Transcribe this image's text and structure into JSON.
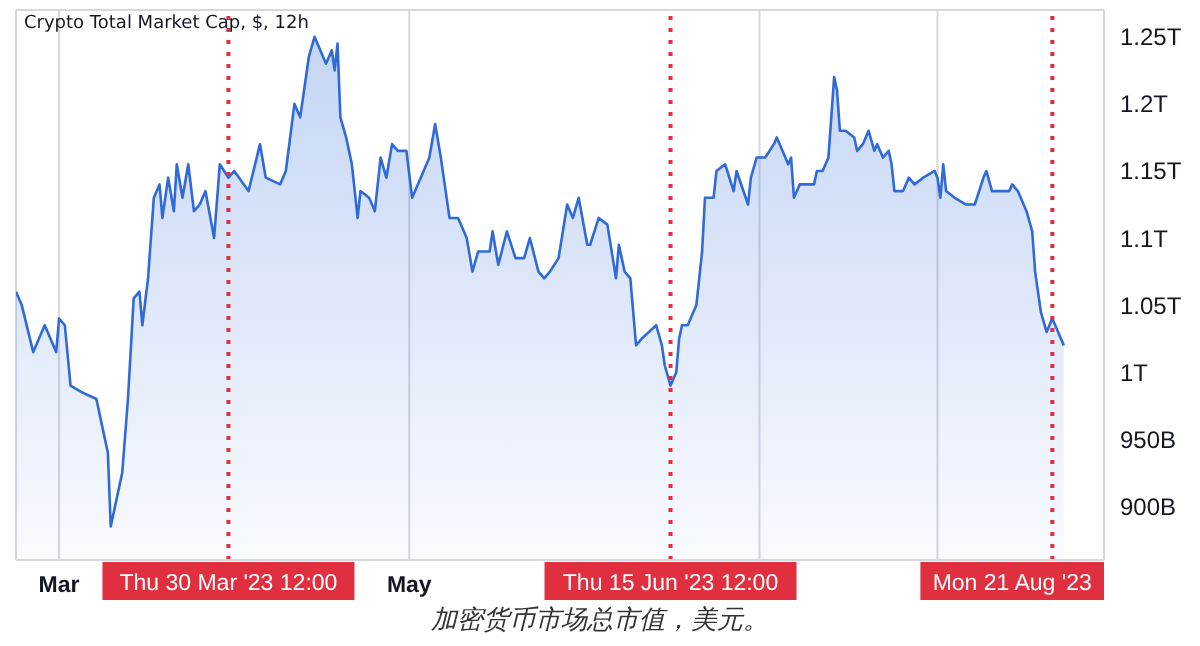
{
  "chart_data": {
    "type": "area",
    "title": "Crypto Total Market Cap, $, 12h",
    "annotations": [
      "加密货币市场总市值，美元。"
    ],
    "x": [
      "2023-02-21T12:00",
      "2023-02-22T12:00",
      "2023-02-24T12:00",
      "2023-02-26T12:00",
      "2023-02-28T12:00",
      "2023-03-01",
      "2023-03-02",
      "2023-03-03",
      "2023-03-05",
      "2023-03-07T12:00",
      "2023-03-08T12:00",
      "2023-03-09T12:00",
      "2023-03-10",
      "2023-03-11",
      "2023-03-12",
      "2023-03-13",
      "2023-03-14",
      "2023-03-15",
      "2023-03-15T12:00",
      "2023-03-16T12:00",
      "2023-03-17T12:00",
      "2023-03-18T12:00",
      "2023-03-19",
      "2023-03-20",
      "2023-03-21",
      "2023-03-21T12:00",
      "2023-03-22T12:00",
      "2023-03-23T12:00",
      "2023-03-24T12:00",
      "2023-03-25T12:00",
      "2023-03-26T12:00",
      "2023-03-28",
      "2023-03-29",
      "2023-03-30T12:00",
      "2023-03-31T12:00",
      "2023-04-03",
      "2023-04-05",
      "2023-04-06",
      "2023-04-08T12:00",
      "2023-04-09T12:00",
      "2023-04-11",
      "2023-04-12",
      "2023-04-13T12:00",
      "2023-04-14T12:00",
      "2023-04-15T12:00",
      "2023-04-16T12:00",
      "2023-04-17T12:00",
      "2023-04-18",
      "2023-04-18T12:00",
      "2023-04-19",
      "2023-04-20",
      "2023-04-21",
      "2023-04-22",
      "2023-04-22T12:00",
      "2023-04-24",
      "2023-04-25",
      "2023-04-26",
      "2023-04-27",
      "2023-04-28",
      "2023-04-29",
      "2023-04-30T12:00",
      "2023-05-01T12:00",
      "2023-05-03",
      "2023-05-04T12:00",
      "2023-05-05T12:00",
      "2023-05-06T12:00",
      "2023-05-08",
      "2023-05-09T12:00",
      "2023-05-11",
      "2023-05-12",
      "2023-05-13",
      "2023-05-15",
      "2023-05-15T12:00",
      "2023-05-16T12:00",
      "2023-05-18",
      "2023-05-19T12:00",
      "2023-05-21",
      "2023-05-22",
      "2023-05-23T12:00",
      "2023-05-24T12:00",
      "2023-05-25T12:00",
      "2023-05-27",
      "2023-05-28T12:00",
      "2023-05-29T12:00",
      "2023-05-30T12:00",
      "2023-06-01",
      "2023-06-01T12:00",
      "2023-06-03",
      "2023-06-04T12:00",
      "2023-06-06",
      "2023-06-06T12:00",
      "2023-06-07T12:00",
      "2023-06-08T12:00",
      "2023-06-09T12:00",
      "2023-06-10T12:00",
      "2023-06-13",
      "2023-06-14",
      "2023-06-14T12:00",
      "2023-06-15T12:00",
      "2023-06-16T12:00",
      "2023-06-17",
      "2023-06-17T12:00",
      "2023-06-18T12:00",
      "2023-06-19T12:00",
      "2023-06-20",
      "2023-06-20T12:00",
      "2023-06-21",
      "2023-06-21T12:00",
      "2023-06-23",
      "2023-06-23T12:00",
      "2023-06-25",
      "2023-06-26T12:00",
      "2023-06-27",
      "2023-06-29",
      "2023-06-29T12:00",
      "2023-06-30T12:00",
      "2023-07-02",
      "2023-07-03T12:00",
      "2023-07-04",
      "2023-07-05",
      "2023-07-06",
      "2023-07-06T12:00",
      "2023-07-07",
      "2023-07-08",
      "2023-07-09",
      "2023-07-10T12:00",
      "2023-07-11",
      "2023-07-12",
      "2023-07-12T12:00",
      "2023-07-13",
      "2023-07-14",
      "2023-07-14T12:00",
      "2023-07-15",
      "2023-07-16",
      "2023-07-17T12:00",
      "2023-07-18",
      "2023-07-19",
      "2023-07-20",
      "2023-07-21",
      "2023-07-21T12:00",
      "2023-07-22T12:00",
      "2023-07-23T12:00",
      "2023-07-24",
      "2023-07-24T12:00",
      "2023-07-26",
      "2023-07-27",
      "2023-07-28",
      "2023-07-29T12:00",
      "2023-07-31T12:00",
      "2023-08-01",
      "2023-08-01T12:00",
      "2023-08-02",
      "2023-08-02T12:00",
      "2023-08-04",
      "2023-08-06",
      "2023-08-07T12:00",
      "2023-08-09",
      "2023-08-09T12:00",
      "2023-08-10T12:00",
      "2023-08-12T12:00",
      "2023-08-13T12:00",
      "2023-08-14",
      "2023-08-15",
      "2023-08-16T12:00",
      "2023-08-17T12:00",
      "2023-08-18",
      "2023-08-18T12:00",
      "2023-08-19",
      "2023-08-20",
      "2023-08-21",
      "2023-08-22",
      "2023-08-23"
    ],
    "series": [
      {
        "color": "#2f6ad8",
        "values": [
          1060000000000.0,
          1050000000000.0,
          1015000000000.0,
          1035000000000.0,
          1015000000000.0,
          1040000000000.0,
          1035000000000.0,
          990000000000.0,
          985000000000.0,
          980000000000.0,
          960000000000.0,
          940000000000.0,
          885000000000.0,
          905000000000.0,
          925000000000.0,
          980000000000.0,
          1055000000000.0,
          1060000000000.0,
          1035000000000.0,
          1070000000000.0,
          1130000000000.0,
          1140000000000.0,
          1115000000000.0,
          1145000000000.0,
          1120000000000.0,
          1155000000000.0,
          1130000000000.0,
          1155000000000.0,
          1120000000000.0,
          1125000000000.0,
          1135000000000.0,
          1100000000000.0,
          1155000000000.0,
          1145000000000.0,
          1150000000000.0,
          1135000000000.0,
          1170000000000.0,
          1145000000000.0,
          1140000000000.0,
          1150000000000.0,
          1200000000000.0,
          1190000000000.0,
          1235000000000.0,
          1250000000000.0,
          1240000000000.0,
          1230000000000.0,
          1240000000000.0,
          1225000000000.0,
          1245000000000.0,
          1190000000000.0,
          1175000000000.0,
          1155000000000.0,
          1115000000000.0,
          1135000000000.0,
          1130000000000.0,
          1120000000000.0,
          1160000000000.0,
          1145000000000.0,
          1170000000000.0,
          1165000000000.0,
          1165000000000.0,
          1130000000000.0,
          1145000000000.0,
          1160000000000.0,
          1185000000000.0,
          1160000000000.0,
          1115000000000.0,
          1115000000000.0,
          1100000000000.0,
          1075000000000.0,
          1090000000000.0,
          1090000000000.0,
          1105000000000.0,
          1080000000000.0,
          1105000000000.0,
          1085000000000.0,
          1085000000000.0,
          1100000000000.0,
          1075000000000.0,
          1070000000000.0,
          1075000000000.0,
          1085000000000.0,
          1125000000000.0,
          1115000000000.0,
          1130000000000.0,
          1095000000000.0,
          1095000000000.0,
          1115000000000.0,
          1110000000000.0,
          1070000000000.0,
          1095000000000.0,
          1075000000000.0,
          1070000000000.0,
          1020000000000.0,
          1025000000000.0,
          1035000000000.0,
          1020000000000.0,
          1005000000000.0,
          990000000000.0,
          1000000000000.0,
          1025000000000.0,
          1035000000000.0,
          1035000000000.0,
          1045000000000.0,
          1050000000000.0,
          1070000000000.0,
          1090000000000.0,
          1130000000000.0,
          1130000000000.0,
          1150000000000.0,
          1155000000000.0,
          1135000000000.0,
          1150000000000.0,
          1125000000000.0,
          1145000000000.0,
          1160000000000.0,
          1160000000000.0,
          1170000000000.0,
          1175000000000.0,
          1165000000000.0,
          1155000000000.0,
          1160000000000.0,
          1130000000000.0,
          1140000000000.0,
          1140000000000.0,
          1140000000000.0,
          1150000000000.0,
          1150000000000.0,
          1155000000000.0,
          1160000000000.0,
          1220000000000.0,
          1210000000000.0,
          1180000000000.0,
          1180000000000.0,
          1175000000000.0,
          1165000000000.0,
          1170000000000.0,
          1180000000000.0,
          1165000000000.0,
          1170000000000.0,
          1160000000000.0,
          1165000000000.0,
          1155000000000.0,
          1135000000000.0,
          1135000000000.0,
          1145000000000.0,
          1140000000000.0,
          1145000000000.0,
          1150000000000.0,
          1145000000000.0,
          1130000000000.0,
          1155000000000.0,
          1135000000000.0,
          1130000000000.0,
          1125000000000.0,
          1125000000000.0,
          1145000000000.0,
          1150000000000.0,
          1135000000000.0,
          1135000000000.0,
          1135000000000.0,
          1140000000000.0,
          1135000000000.0,
          1120000000000.0,
          1105000000000.0,
          1075000000000.0,
          1060000000000.0,
          1045000000000.0,
          1030000000000.0,
          1040000000000.0,
          1030000000000.0,
          1020000000000.0
        ]
      }
    ],
    "xlim": [
      "2023-02-21T12:00",
      "2023-08-30"
    ],
    "xticks": [
      {
        "value": "2023-03-01",
        "label": "Mar"
      },
      {
        "value": "2023-05-01",
        "label": "May"
      },
      {
        "value": "2023-07-01",
        "label": null
      },
      {
        "value": "2023-08-01",
        "label": null
      }
    ],
    "ylim": [
      860000000000.0,
      1270000000000.0
    ],
    "yticks": [
      {
        "value": 900000000000.0,
        "label": "900B"
      },
      {
        "value": 950000000000.0,
        "label": "950B"
      },
      {
        "value": 1000000000000.0,
        "label": "1T"
      },
      {
        "value": 1050000000000.0,
        "label": "1.05T"
      },
      {
        "value": 1100000000000.0,
        "label": "1.1T"
      },
      {
        "value": 1150000000000.0,
        "label": "1.15T"
      },
      {
        "value": 1200000000000.0,
        "label": "1.2T"
      },
      {
        "value": 1250000000000.0,
        "label": "1.25T"
      }
    ],
    "grid": true,
    "ref_lines": [
      {
        "axis": "x",
        "value": "2023-03-30T12:00",
        "label": "Thu 30 Mar '23 12:00",
        "color": "#e0303f",
        "line_style": "dotted"
      },
      {
        "axis": "x",
        "value": "2023-06-15T12:00",
        "label": "Thu 15 Jun '23 12:00",
        "color": "#e0303f",
        "line_style": "dotted"
      },
      {
        "axis": "x",
        "value": "2023-08-21",
        "label": "Mon 21 Aug '23",
        "color": "#e0303f",
        "line_style": "dotted"
      }
    ]
  }
}
